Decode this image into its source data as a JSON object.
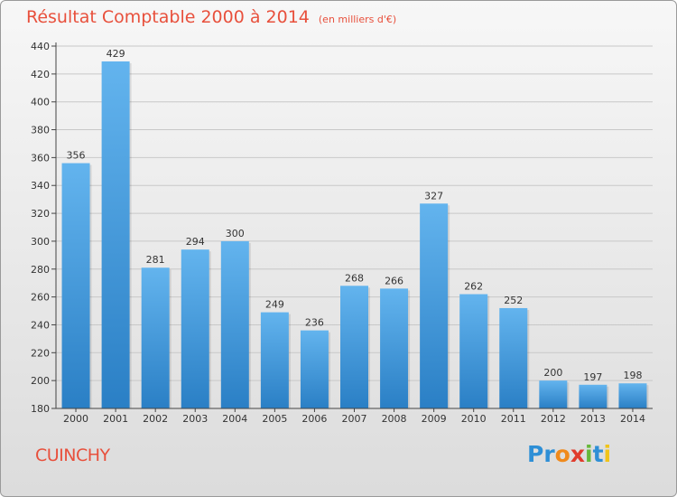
{
  "header": {
    "title": "Résultat Comptable 2000 à 2014",
    "unit": "(en milliers d'€)"
  },
  "footer": {
    "commune": "CUINCHY",
    "brand": "Proxiti"
  },
  "colors": {
    "title": "#e8503c",
    "bar_light": "#63b4ee",
    "bar_dark": "#2a7fc5",
    "logo": [
      "#2e8fd6",
      "#2e8fd6",
      "#f08a1c",
      "#e03b2c",
      "#67b83a",
      "#2e8fd6",
      "#f0c419"
    ]
  },
  "chart_data": {
    "type": "bar",
    "title": "Résultat Comptable 2000 à 2014",
    "subtitle": "(en milliers d'€)",
    "xlabel": "",
    "ylabel": "",
    "categories": [
      "2000",
      "2001",
      "2002",
      "2003",
      "2004",
      "2005",
      "2006",
      "2007",
      "2008",
      "2009",
      "2010",
      "2011",
      "2012",
      "2013",
      "2014"
    ],
    "values": [
      356,
      429,
      281,
      294,
      300,
      249,
      236,
      268,
      266,
      327,
      262,
      252,
      200,
      197,
      198
    ],
    "ylim": [
      180,
      440
    ],
    "yticks": [
      "180",
      "200",
      "220",
      "240",
      "260",
      "280",
      "300",
      "320",
      "340",
      "360",
      "380",
      "400",
      "420",
      "440"
    ],
    "grid": true,
    "legend": "none"
  }
}
